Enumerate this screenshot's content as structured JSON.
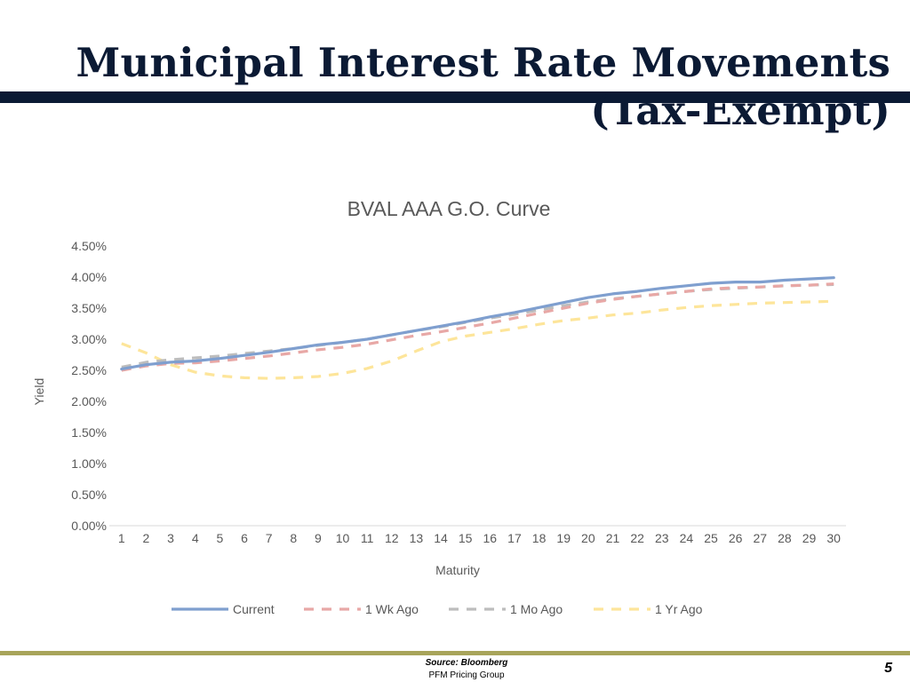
{
  "slide": {
    "title": "Municipal Interest Rate Movements (Tax-Exempt)",
    "source": "Source: Bloomberg",
    "group": "PFM Pricing Group",
    "page_number": "5"
  },
  "colors": {
    "title": "#0b1a34",
    "footer_rule": "#a8a45a",
    "current": "#7f9fcf",
    "wk": "#e8a8a6",
    "mo": "#bdbdbd",
    "yr": "#fde59a"
  },
  "chart_data": {
    "type": "line",
    "title": "BVAL AAA G.O. Curve",
    "xlabel": "Maturity",
    "ylabel": "Yield",
    "ylim": [
      0,
      4.5
    ],
    "ytick_step": 0.5,
    "ytick_format": "percent_2dp",
    "grid": false,
    "legend": "bottom",
    "categories": [
      1,
      2,
      3,
      4,
      5,
      6,
      7,
      8,
      9,
      10,
      11,
      12,
      13,
      14,
      15,
      16,
      17,
      18,
      19,
      20,
      21,
      22,
      23,
      24,
      25,
      26,
      27,
      28,
      29,
      30
    ],
    "series": [
      {
        "name": "Current",
        "style": "solid",
        "color": "#7f9fcf",
        "values": [
          2.52,
          2.59,
          2.63,
          2.65,
          2.69,
          2.74,
          2.79,
          2.85,
          2.91,
          2.95,
          3.0,
          3.07,
          3.14,
          3.21,
          3.28,
          3.36,
          3.43,
          3.51,
          3.59,
          3.67,
          3.73,
          3.77,
          3.82,
          3.86,
          3.9,
          3.92,
          3.92,
          3.95,
          3.97,
          3.99
        ]
      },
      {
        "name": "1 Wk Ago",
        "style": "dash",
        "color": "#e8a8a6",
        "values": [
          2.5,
          2.57,
          2.61,
          2.62,
          2.65,
          2.69,
          2.73,
          2.78,
          2.83,
          2.87,
          2.92,
          2.99,
          3.06,
          3.12,
          3.19,
          3.26,
          3.34,
          3.42,
          3.5,
          3.58,
          3.64,
          3.69,
          3.73,
          3.77,
          3.81,
          3.83,
          3.84,
          3.86,
          3.87,
          3.89
        ]
      },
      {
        "name": "1 Mo Ago",
        "style": "dash",
        "color": "#bdbdbd",
        "values": [
          2.55,
          2.63,
          2.67,
          2.7,
          2.73,
          2.77,
          2.81,
          2.85,
          2.9,
          2.95,
          3.0,
          3.07,
          3.14,
          3.2,
          3.27,
          3.34,
          3.4,
          3.47,
          3.54,
          3.6,
          3.65,
          3.69,
          3.73,
          3.77,
          3.8,
          3.82,
          3.84,
          3.86,
          3.87,
          3.88
        ]
      },
      {
        "name": "1 Yr Ago",
        "style": "dash",
        "color": "#fde59a",
        "values": [
          2.93,
          2.78,
          2.59,
          2.47,
          2.41,
          2.38,
          2.37,
          2.38,
          2.4,
          2.45,
          2.53,
          2.65,
          2.81,
          2.96,
          3.05,
          3.11,
          3.17,
          3.24,
          3.3,
          3.34,
          3.39,
          3.42,
          3.47,
          3.51,
          3.54,
          3.56,
          3.58,
          3.59,
          3.6,
          3.61
        ]
      }
    ]
  }
}
